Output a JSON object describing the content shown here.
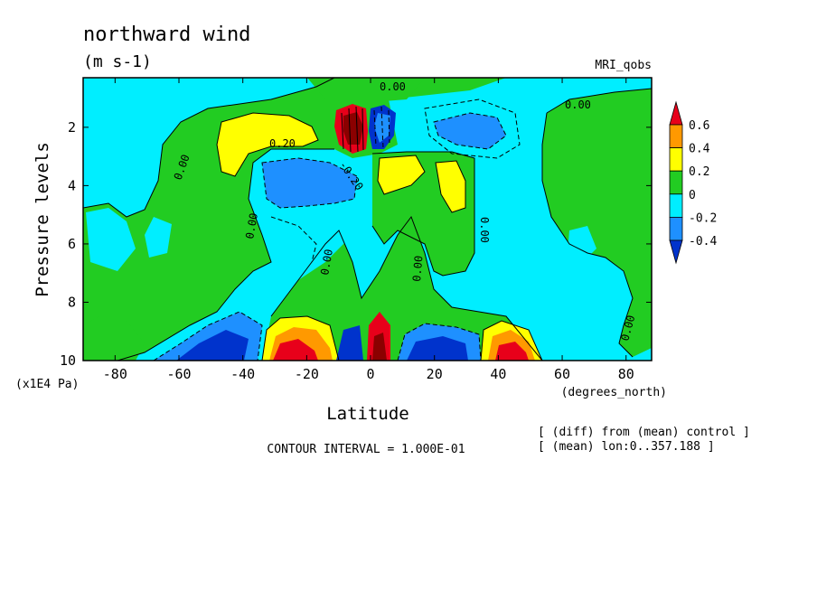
{
  "chart_data": {
    "type": "contour",
    "title": "northward wind",
    "units": "(m s-1)",
    "model": "MRI_qobs",
    "xlabel": "Latitude",
    "ylabel": "Pressure levels",
    "x_units": "(degrees_north)",
    "y_units": "(x1E4 Pa)",
    "xlim": [
      -90,
      88
    ],
    "ylim": [
      10,
      0.3
    ],
    "x_ticks": [
      "-80",
      "-60",
      "-40",
      "-20",
      "0",
      "20",
      "40",
      "60",
      "80"
    ],
    "y_ticks": [
      "2",
      "4",
      "6",
      "8",
      "10"
    ],
    "contour_interval_text": "CONTOUR INTERVAL = 1.000E-01",
    "notes": [
      "[ (diff) from (mean) control ]",
      "[ (mean) lon:0..357.188 ]"
    ],
    "colorbar": {
      "labels": [
        "0.6",
        "0.4",
        "0.2",
        "0",
        "-0.2",
        "-0.4"
      ],
      "colors": [
        "#e8001a",
        "#ff9900",
        "#ffff00",
        "#22cc22",
        "#00eeff",
        "#1e90ff",
        "#0033cc"
      ]
    },
    "contour_labels": [
      "0.00",
      "0.00",
      "0.00",
      "0.00",
      "0.00",
      "0.00",
      "0.00",
      "0.00",
      "0.20",
      "-0.20"
    ],
    "regions": [
      {
        "name": "green-nh-high-lat",
        "value": 0.05
      },
      {
        "name": "green-sh-high-lat",
        "value": 0.05
      },
      {
        "name": "yellow-sh-upper",
        "value": 0.25
      },
      {
        "name": "blue-sh-upper",
        "value": -0.25
      },
      {
        "name": "dipole-upper-equator",
        "value": 0.8
      },
      {
        "name": "yellow-nh-upper",
        "value": 0.25
      },
      {
        "name": "blue-nh-upper",
        "value": -0.25
      },
      {
        "name": "red-sh-surface",
        "value": 0.6
      },
      {
        "name": "blue-sh-surface",
        "value": -0.4
      },
      {
        "name": "red-nh-surface",
        "value": 0.5
      },
      {
        "name": "blue-nh-surface",
        "value": -0.4
      }
    ]
  }
}
